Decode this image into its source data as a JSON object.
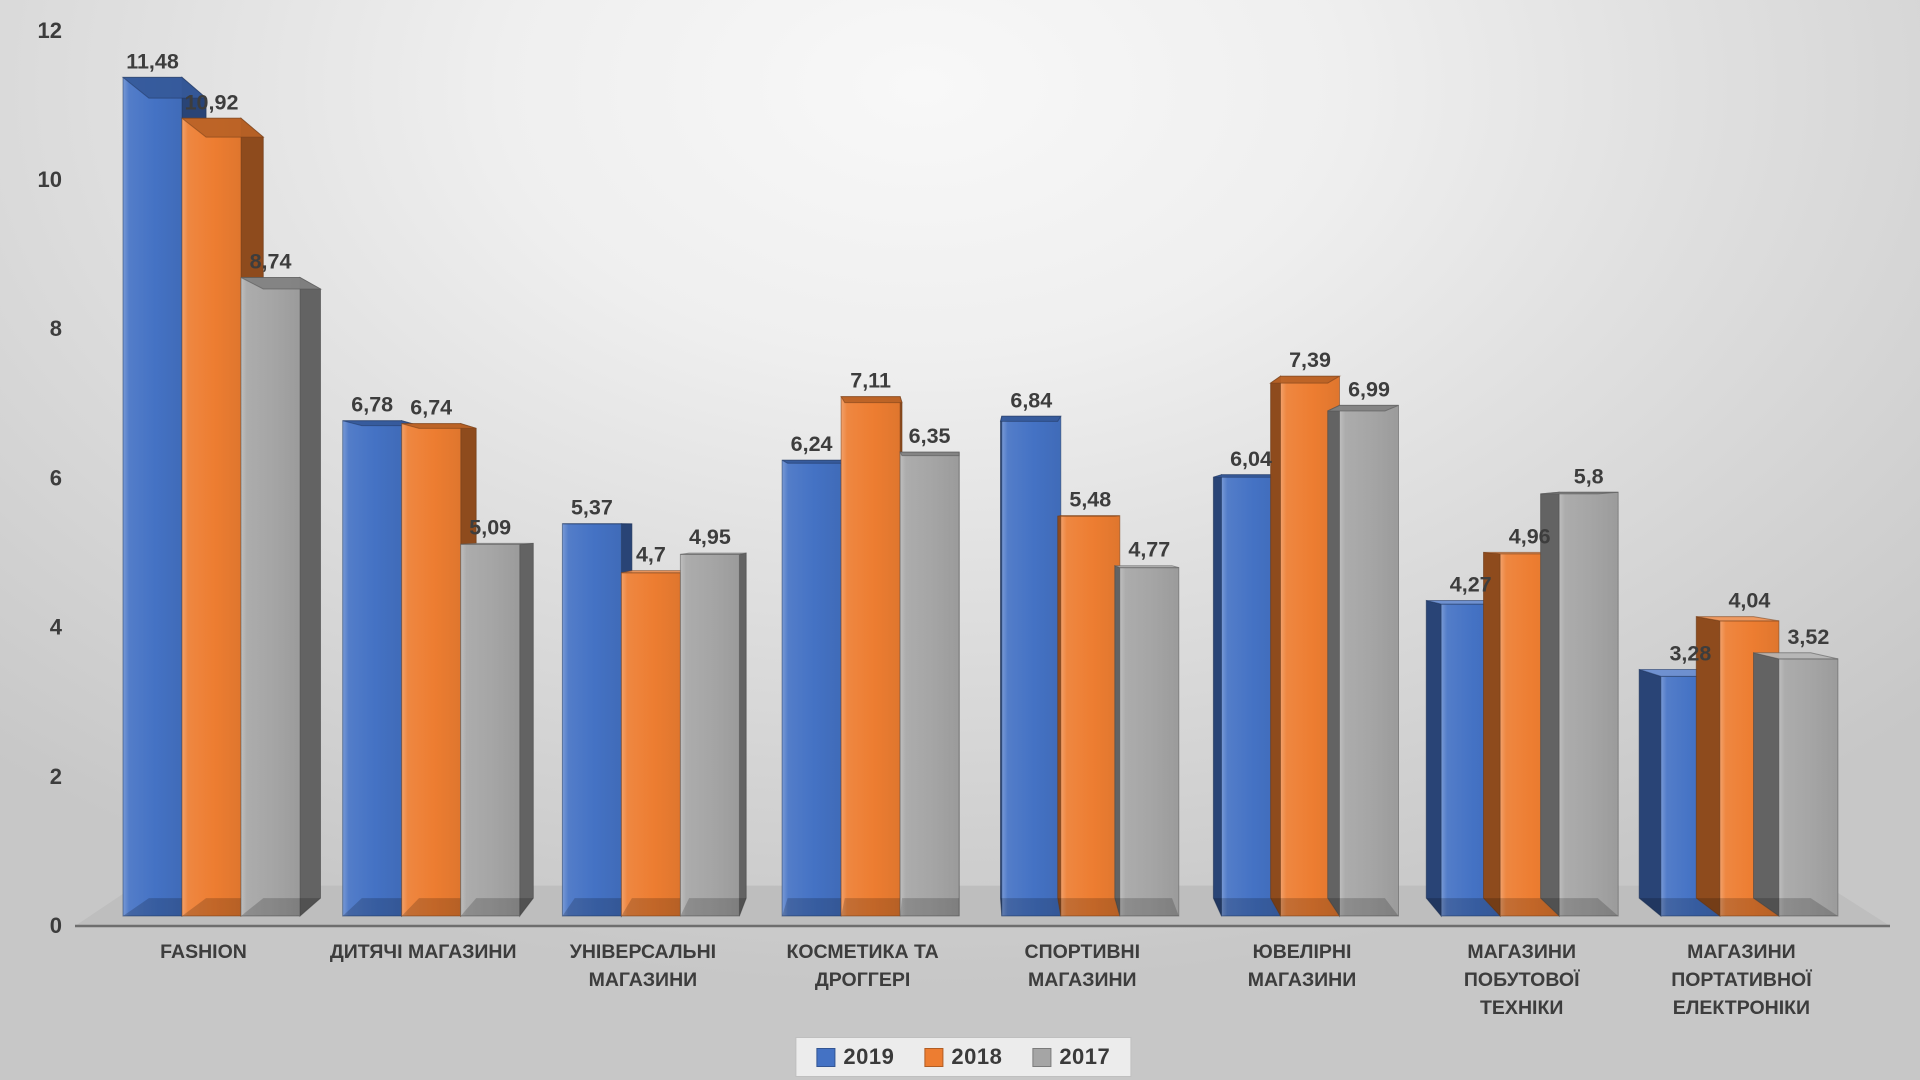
{
  "chart_data": {
    "type": "bar",
    "variant": "3d-clustered-column",
    "title": "",
    "xlabel": "",
    "ylabel": "",
    "ylim": [
      0,
      12
    ],
    "ytick_step": 2,
    "yticks": [
      0,
      2,
      4,
      6,
      8,
      10,
      12
    ],
    "grid": false,
    "legend_position": "bottom",
    "decimal_separator": ",",
    "categories": [
      "FASHION",
      "ДИТЯЧІ МАГАЗИНИ",
      "УНІВЕРСАЛЬНІ МАГАЗИНИ",
      "КОСМЕТИКА ТА ДРОГГЕРІ",
      "СПОРТИВНІ МАГАЗИНИ",
      "ЮВЕЛІРНІ МАГАЗИНИ",
      "МАГАЗИНИ ПОБУТОВОЇ ТЕХНІКИ",
      "МАГАЗИНИ ПОРТАТИВНОЇ ЕЛЕКТРОНІКИ"
    ],
    "category_label_lines": [
      [
        "FASHION"
      ],
      [
        "ДИТЯЧІ МАГАЗИНИ"
      ],
      [
        "УНІВЕРСАЛЬНІ",
        "МАГАЗИНИ"
      ],
      [
        "КОСМЕТИКА ТА",
        "ДРОГГЕРІ"
      ],
      [
        "СПОРТИВНІ",
        "МАГАЗИНИ"
      ],
      [
        "ЮВЕЛІРНІ",
        "МАГАЗИНИ"
      ],
      [
        "МАГАЗИНИ",
        "ПОБУТОВОЇ",
        "ТЕХНІКИ"
      ],
      [
        "МАГАЗИНИ",
        "ПОРТАТИВНОЇ",
        "ЕЛЕКТРОНІКИ"
      ]
    ],
    "series": [
      {
        "name": "2019",
        "color": "#4472C4",
        "values": [
          11.48,
          6.78,
          5.37,
          6.24,
          6.84,
          6.04,
          4.27,
          3.28
        ],
        "value_labels": [
          "11,48",
          "6,78",
          "5,37",
          "6,24",
          "6,84",
          "6,04",
          "4,27",
          "3,28"
        ]
      },
      {
        "name": "2018",
        "color": "#ED7D31",
        "values": [
          10.92,
          6.74,
          4.7,
          7.11,
          5.48,
          7.39,
          4.96,
          4.04
        ],
        "value_labels": [
          "10,92",
          "6,74",
          "4,7",
          "7,11",
          "5,48",
          "7,39",
          "4,96",
          "4,04"
        ]
      },
      {
        "name": "2017",
        "color": "#A5A5A5",
        "values": [
          8.74,
          5.09,
          4.95,
          6.35,
          4.77,
          6.99,
          5.8,
          3.52
        ],
        "value_labels": [
          "8,74",
          "5,09",
          "4,95",
          "6,35",
          "4,77",
          "6,99",
          "5,8",
          "3,52"
        ]
      }
    ]
  },
  "legend": {
    "items": [
      {
        "label": "2019",
        "color": "#4472C4"
      },
      {
        "label": "2018",
        "color": "#ED7D31"
      },
      {
        "label": "2017",
        "color": "#A5A5A5"
      }
    ]
  },
  "colors": {
    "text": "#3d3d3d",
    "axis_line": "#6e6e6e",
    "floor": "#bebebe",
    "legend_background": "#ececec"
  }
}
